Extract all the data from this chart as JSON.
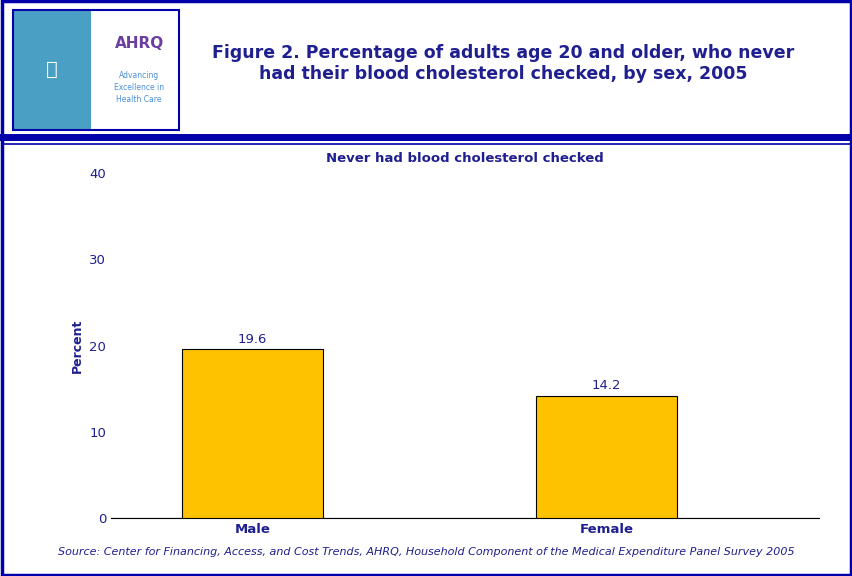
{
  "categories": [
    "Male",
    "Female"
  ],
  "values": [
    19.6,
    14.2
  ],
  "bar_color": "#FFC200",
  "bar_edge_color": "#000000",
  "title_line1": "Figure 2. Percentage of adults age 20 and older, who never",
  "title_line2": "had their blood cholesterol checked, by sex, 2005",
  "title_color": "#1F1F8F",
  "chart_subtitle": "Never had blood cholesterol checked",
  "ylabel": "Percent",
  "ylabel_color": "#1F1F8F",
  "ylim": [
    0,
    40
  ],
  "yticks": [
    0,
    10,
    20,
    30,
    40
  ],
  "source_text": "Source: Center for Financing, Access, and Cost Trends, AHRQ, Household Component of the Medical Expenditure Panel Survey 2005",
  "source_color": "#1F1F8F",
  "background_color": "#FFFFFF",
  "divider_color": "#0000AA",
  "outer_border_color": "#0000AA",
  "value_label_color": "#1F1F8F",
  "tick_label_color": "#1F1F8F",
  "bar_width": 0.4,
  "title_fontsize": 12.5,
  "subtitle_fontsize": 9.5,
  "ylabel_fontsize": 9,
  "tick_fontsize": 9.5,
  "value_fontsize": 9.5,
  "source_fontsize": 8,
  "logo_left_color": "#4A9FC4",
  "logo_right_color": "#FFFFFF",
  "logo_border_color": "#0000AA",
  "ahrq_text_color": "#6B3FA0",
  "ahrq_subtext_color": "#4A90D9"
}
